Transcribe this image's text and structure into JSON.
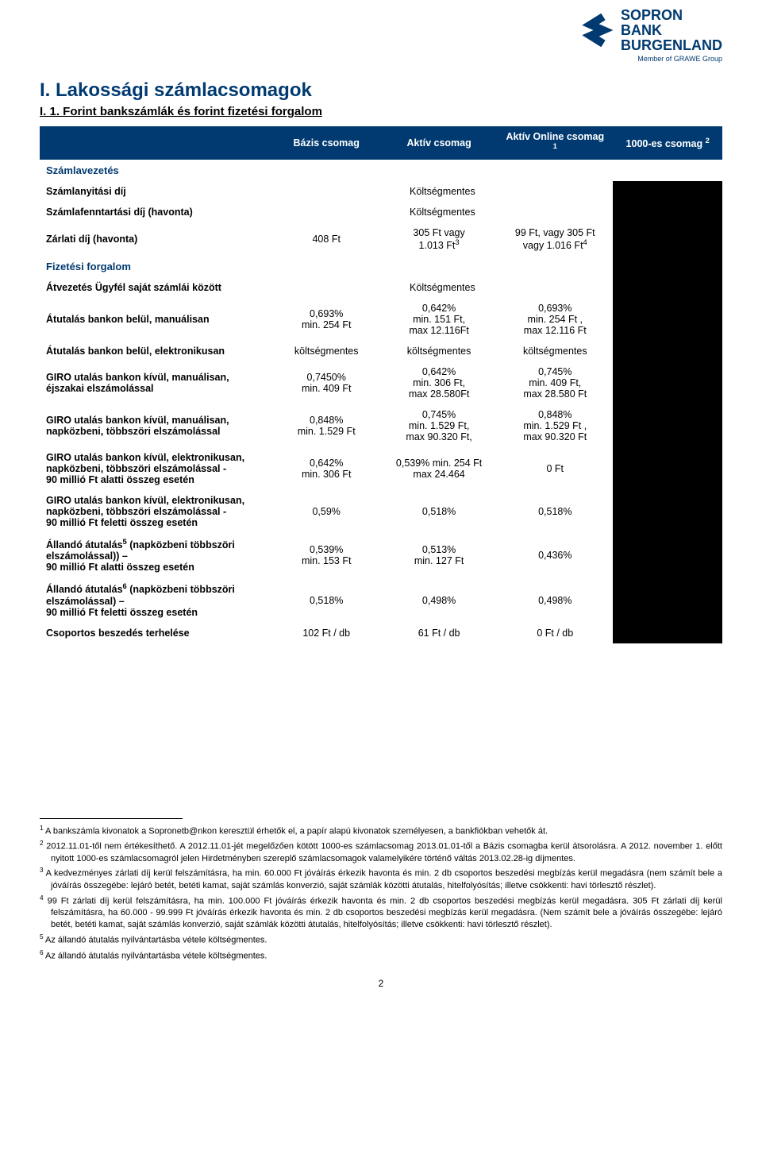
{
  "logo": {
    "line1": "SOPRON",
    "line2": "BANK",
    "line3": "BURGENLAND",
    "tagline": "Member of GRAWE Group",
    "mark_color": "#003a70"
  },
  "title": "I. Lakossági számlacsomagok",
  "subtitle": "I. 1. Forint bankszámlák és forint fizetési forgalom",
  "columns": {
    "col1": "Bázis csomag",
    "col2": "Aktív csomag",
    "col3_prefix": "Aktív Online csomag ",
    "col3_sup": "1",
    "col4_prefix": "1000-es csomag ",
    "col4_sup": "2"
  },
  "sections": {
    "s1": "Számlavezetés",
    "s2": "Fizetési forgalom"
  },
  "rows": {
    "r1": {
      "label": "Számlanyitási díj",
      "c123": "Költségmentes"
    },
    "r2": {
      "label": "Számlafenntartási díj (havonta)",
      "c123": "Költségmentes"
    },
    "r3": {
      "label": "Zárlati díj (havonta)",
      "c1": "408 Ft",
      "c2_line1": "305 Ft vagy",
      "c2_line2_pre": "1.013 Ft",
      "c2_sup": "3",
      "c3_line1": "99 Ft, vagy 305 Ft",
      "c3_line2_pre": "vagy 1.016 Ft",
      "c3_sup": "4"
    },
    "r4": {
      "label": "Átvezetés Ügyfél saját számlái között",
      "c123": "Költségmentes"
    },
    "r5": {
      "label": "Átutalás bankon belül, manuálisan",
      "c1": "0,693%\nmin. 254 Ft",
      "c2": "0,642%\nmin. 151 Ft,\nmax 12.116Ft",
      "c3": "0,693%\nmin. 254 Ft ,\nmax 12.116 Ft"
    },
    "r6": {
      "label": "Átutalás bankon belül, elektronikusan",
      "c1": "költségmentes",
      "c2": "költségmentes",
      "c3": "költségmentes"
    },
    "r7": {
      "label": "GIRO utalás bankon kívül, manuálisan, éjszakai elszámolással",
      "c1": "0,7450%\nmin. 409 Ft",
      "c2": "0,642%\nmin. 306 Ft,\nmax 28.580Ft",
      "c3": "0,745%\nmin. 409 Ft,\nmax 28.580 Ft"
    },
    "r8": {
      "label": "GIRO utalás bankon kívül, manuálisan, napközbeni, többszöri elszámolással",
      "c1": "0,848%\nmin. 1.529 Ft",
      "c2": "0,745%\nmin. 1.529 Ft,\nmax  90.320 Ft,",
      "c3": "0,848%\nmin. 1.529 Ft ,\nmax 90.320 Ft"
    },
    "r9": {
      "label": "GIRO utalás bankon kívül, elektronikusan, napközbeni, többszöri elszámolással -\n   90 millió Ft alatti összeg esetén",
      "c1": "0,642%\nmin. 306 Ft",
      "c2": "0,539% min. 254 Ft\nmax 24.464",
      "c3": "0 Ft"
    },
    "r10": {
      "label": "GIRO utalás bankon kívül, elektronikusan, napközbeni, többszöri elszámolással -\n   90 millió Ft feletti összeg esetén",
      "c1": "0,59%",
      "c2": "0,518%",
      "c3": "0,518%"
    },
    "r11": {
      "label_pre": "Állandó átutalás",
      "label_sup": "5",
      "label_post": " (napközbeni többszöri elszámolással)) –\n   90 millió Ft alatti összeg esetén",
      "c1": "0,539%\nmin. 153 Ft",
      "c2": "0,513%\nmin. 127 Ft",
      "c3": "0,436%"
    },
    "r12": {
      "label_pre": "Állandó átutalás",
      "label_sup": "6",
      "label_post": " (napközbeni többszöri elszámolással) –\n   90 millió Ft feletti összeg esetén",
      "c1": "0,518%",
      "c2": "0,498%",
      "c3": "0,498%"
    },
    "r13": {
      "label": "Csoportos beszedés terhelése",
      "c1": "102 Ft / db",
      "c2": "61 Ft / db",
      "c3": "0 Ft / db"
    }
  },
  "footnotes": {
    "f1_sup": "1",
    "f1": " A bankszámla kivonatok a Sopronetb@nkon keresztül érhetők el, a papír alapú kivonatok személyesen, a bankfiókban vehetők át.",
    "f2_sup": "2",
    "f2": " 2012.11.01-től nem értékesíthető. A 2012.11.01-jét megelőzően kötött 1000-es számlacsomag 2013.01.01-től a Bázis csomagba kerül átsorolásra. A 2012. november 1. előtt nyitott 1000-es számlacsomagról jelen Hirdetményben szereplő számlacsomagok valamelyikére történő váltás 2013.02.28-ig díjmentes.",
    "f3_sup": "3",
    "f3": " A kedvezményes zárlati díj kerül felszámításra, ha min. 60.000 Ft jóváírás érkezik havonta és min. 2 db csoportos beszedési megbízás kerül megadásra (nem számít bele a jóváírás összegébe: lejáró betét, betéti kamat, saját számlás konverzió, saját számlák közötti átutalás, hitelfolyósítás; illetve csökkenti: havi törlesztő részlet).",
    "f4_sup": "4",
    "f4": " 99 Ft zárlati díj kerül felszámításra, ha min. 100.000 Ft jóváírás érkezik havonta és min. 2 db csoportos beszedési megbízás kerül megadásra. 305 Ft zárlati díj kerül felszámításra, ha 60.000 - 99.999 Ft jóváírás érkezik havonta és min. 2 db csoportos beszedési megbízás kerül megadásra. (Nem számít bele a jóváírás összegébe: lejáró betét, betéti kamat, saját számlás konverzió, saját számlák közötti átutalás, hitelfolyósítás; illetve csökkenti: havi törlesztő részlet).",
    "f5_sup": "5",
    "f5": " Az állandó átutalás nyilvántartásba vétele költségmentes.",
    "f6_sup": "6",
    "f6": " Az állandó átutalás nyilvántartásba vétele költségmentes."
  },
  "page_number": "2",
  "style": {
    "brand_color": "#003a70",
    "header_bg": "#003a70",
    "header_fg": "#ffffff",
    "black_col": "#000000",
    "body_font_size": 12.5,
    "title_font_size": 24
  }
}
